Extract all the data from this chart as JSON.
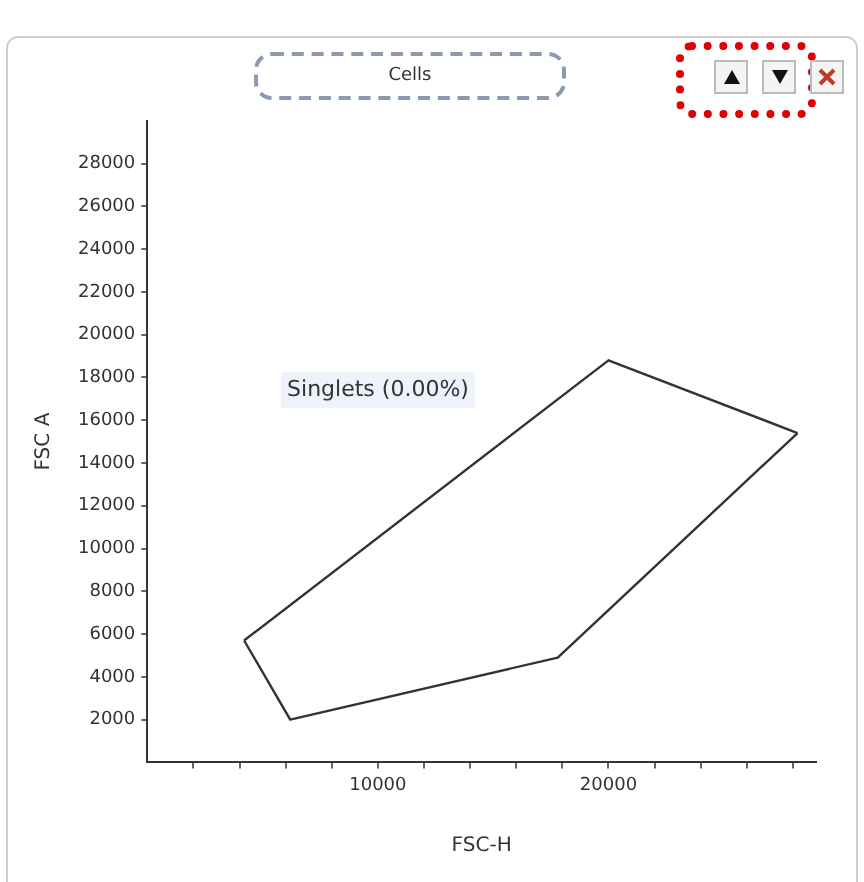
{
  "chart_data": {
    "type": "line",
    "title": "Cells",
    "xlabel": "FSC-H",
    "ylabel": "FSC A",
    "series": [
      {
        "color": "#333333",
        "x": [
          4200,
          20000,
          28200
        ],
        "values": [
          5700,
          18800,
          15400
        ]
      },
      {
        "color": "#333333",
        "x": [
          4200,
          6200,
          17800,
          28200
        ],
        "values": [
          5700,
          2000,
          4900,
          15400
        ]
      }
    ],
    "xlim": [
      0,
      29000
    ],
    "xticks": [
      {
        "value": 2000,
        "label": null
      },
      {
        "value": 4000,
        "label": null
      },
      {
        "value": 6000,
        "label": null
      },
      {
        "value": 8000,
        "label": null
      },
      10000,
      {
        "value": 12000,
        "label": null
      },
      {
        "value": 14000,
        "label": null
      },
      {
        "value": 16000,
        "label": null
      },
      {
        "value": 18000,
        "label": null
      },
      20000,
      {
        "value": 22000,
        "label": null
      },
      {
        "value": 24000,
        "label": null
      },
      {
        "value": 26000,
        "label": null
      },
      {
        "value": 28000,
        "label": null
      }
    ],
    "ylim": [
      0,
      30000
    ],
    "yticks": [
      2000,
      4000,
      6000,
      8000,
      10000,
      12000,
      14000,
      16000,
      18000,
      20000,
      22000,
      24000,
      26000,
      28000
    ],
    "annotations": [
      "Singlets (0.00%)"
    ],
    "marker": "none",
    "line_style": "solid",
    "grid": false,
    "legend": false
  }
}
